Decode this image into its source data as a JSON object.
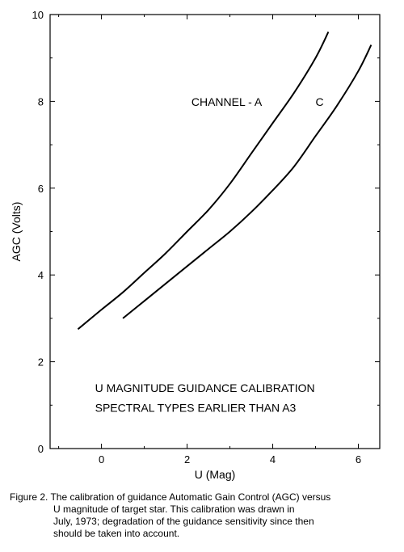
{
  "chart_data": {
    "type": "line",
    "title": "",
    "xlabel": "U (Mag)",
    "ylabel": "AGC (Volts)",
    "xlim": [
      -1.2,
      6.5
    ],
    "ylim": [
      0,
      10
    ],
    "xticks": [
      0,
      2,
      4,
      6
    ],
    "yticks": [
      0,
      2,
      4,
      6,
      8,
      10
    ],
    "xtick_labels": [
      "0",
      "2",
      "4",
      "6"
    ],
    "ytick_labels": [
      "0",
      "2",
      "4",
      "6",
      "8",
      "10"
    ],
    "grid": false,
    "legend": "none",
    "series": [
      {
        "name": "CHANNEL - A",
        "x": [
          -0.55,
          0.0,
          0.5,
          1.0,
          1.5,
          2.0,
          2.5,
          3.0,
          3.5,
          4.0,
          4.5,
          5.0,
          5.3
        ],
        "y": [
          2.75,
          3.2,
          3.6,
          4.05,
          4.5,
          5.0,
          5.5,
          6.1,
          6.8,
          7.5,
          8.2,
          9.0,
          9.6
        ]
      },
      {
        "name": "C",
        "x": [
          0.5,
          1.0,
          1.5,
          2.0,
          2.5,
          3.0,
          3.5,
          4.0,
          4.5,
          5.0,
          5.5,
          6.0,
          6.3
        ],
        "y": [
          3.0,
          3.4,
          3.8,
          4.2,
          4.6,
          5.0,
          5.45,
          5.95,
          6.5,
          7.2,
          7.9,
          8.7,
          9.3
        ]
      }
    ],
    "annotations": [
      {
        "text": "CHANNEL - A",
        "x": 2.1,
        "y": 7.9
      },
      {
        "text": "C",
        "x": 5.0,
        "y": 7.9
      },
      {
        "text": "U MAGNITUDE GUIDANCE CALIBRATION",
        "x": -0.15,
        "y": 1.3
      },
      {
        "text": "SPECTRAL TYPES EARLIER THAN A3",
        "x": -0.15,
        "y": 0.85
      }
    ]
  },
  "caption": {
    "lines": [
      "Figure 2.  The calibration of guidance Automatic Gain Control (AGC) versus",
      "U magnitude of target star.  This calibration was drawn in",
      "July, 1973; degradation of the guidance sensitivity since then",
      "should be taken into account."
    ]
  }
}
